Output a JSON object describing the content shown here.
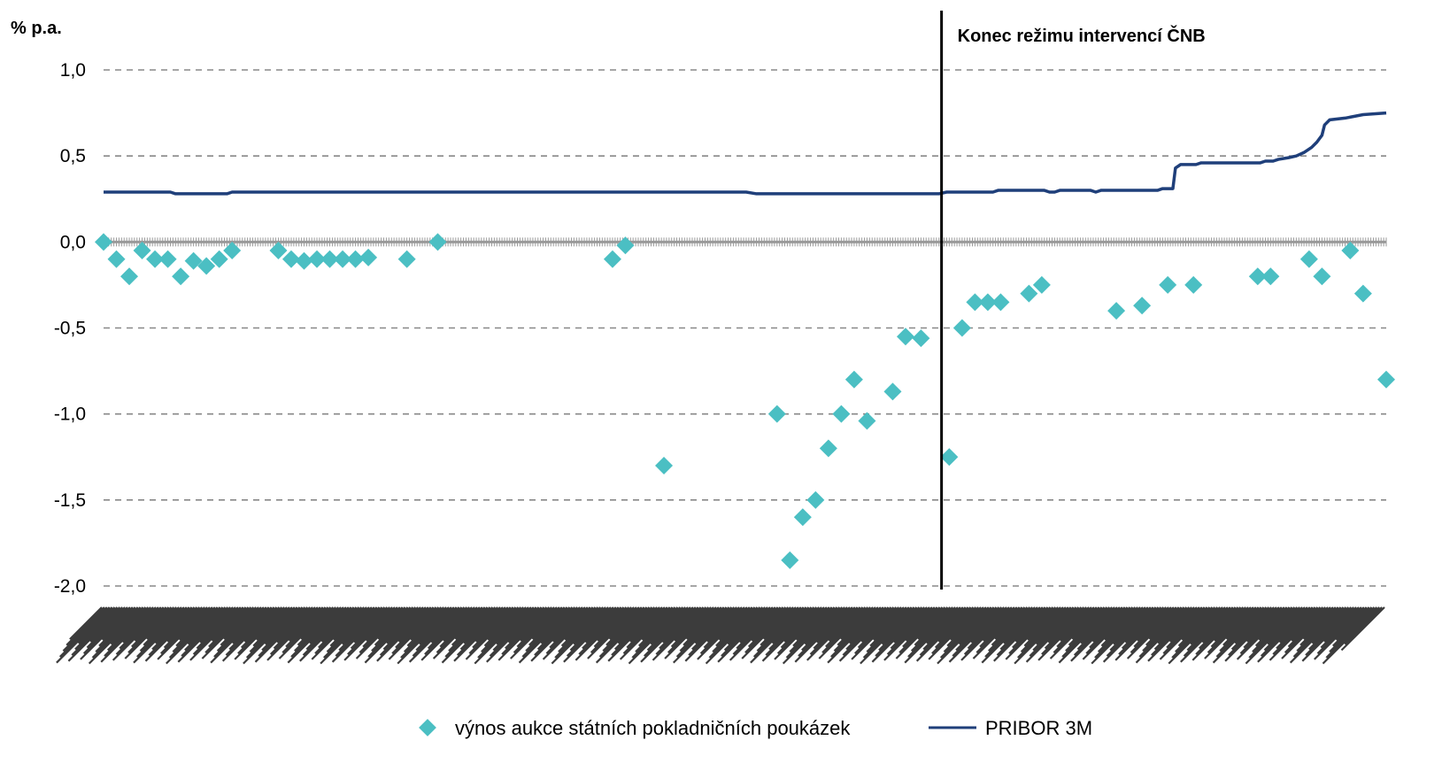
{
  "chart_data": {
    "type": "line",
    "title": "",
    "ylabel": "% p.a.",
    "xlabel": "",
    "ylim": [
      -2.0,
      1.0
    ],
    "yticks": [
      "1,0",
      "0,5",
      "0,0",
      "-0,5",
      "-1,0",
      "-1,5",
      "-2,0"
    ],
    "ytick_values": [
      1.0,
      0.5,
      0.0,
      -0.5,
      -1.0,
      -1.5,
      -2.0
    ],
    "grid": "horizontal dashed",
    "x_points": 500,
    "annotation": {
      "text": "Konec režimu intervencí ČNB",
      "x_index": 326
    },
    "legend": {
      "placement": "bottom-center",
      "items": [
        {
          "label": "výnos aukce státních pokladničních poukázek",
          "marker": "diamond",
          "color": "#4bbfc3"
        },
        {
          "label": "PRIBOR 3M",
          "marker": "line",
          "color": "#1f3f7a"
        }
      ]
    },
    "series": [
      {
        "name": "výnos aukce státních pokladničních poukázek",
        "type": "scatter",
        "color": "#4bbfc3",
        "points": [
          {
            "i": 0,
            "y": 0.0
          },
          {
            "i": 5,
            "y": -0.1
          },
          {
            "i": 10,
            "y": -0.2
          },
          {
            "i": 15,
            "y": -0.05
          },
          {
            "i": 20,
            "y": -0.1
          },
          {
            "i": 25,
            "y": -0.1
          },
          {
            "i": 30,
            "y": -0.2
          },
          {
            "i": 35,
            "y": -0.11
          },
          {
            "i": 40,
            "y": -0.14
          },
          {
            "i": 45,
            "y": -0.1
          },
          {
            "i": 50,
            "y": -0.05
          },
          {
            "i": 68,
            "y": -0.05
          },
          {
            "i": 73,
            "y": -0.1
          },
          {
            "i": 78,
            "y": -0.11
          },
          {
            "i": 83,
            "y": -0.1
          },
          {
            "i": 88,
            "y": -0.1
          },
          {
            "i": 93,
            "y": -0.1
          },
          {
            "i": 98,
            "y": -0.1
          },
          {
            "i": 103,
            "y": -0.09
          },
          {
            "i": 118,
            "y": -0.1
          },
          {
            "i": 130,
            "y": 0.0
          },
          {
            "i": 198,
            "y": -0.1
          },
          {
            "i": 203,
            "y": -0.02
          },
          {
            "i": 218,
            "y": -1.3
          },
          {
            "i": 262,
            "y": -1.0
          },
          {
            "i": 267,
            "y": -1.85
          },
          {
            "i": 272,
            "y": -1.6
          },
          {
            "i": 277,
            "y": -1.5
          },
          {
            "i": 282,
            "y": -1.2
          },
          {
            "i": 287,
            "y": -1.0
          },
          {
            "i": 292,
            "y": -0.8
          },
          {
            "i": 297,
            "y": -1.04
          },
          {
            "i": 307,
            "y": -0.87
          },
          {
            "i": 312,
            "y": -0.55
          },
          {
            "i": 318,
            "y": -0.56
          },
          {
            "i": 329,
            "y": -1.25
          },
          {
            "i": 334,
            "y": -0.5
          },
          {
            "i": 339,
            "y": -0.35
          },
          {
            "i": 344,
            "y": -0.35
          },
          {
            "i": 349,
            "y": -0.35
          },
          {
            "i": 360,
            "y": -0.3
          },
          {
            "i": 365,
            "y": -0.25
          },
          {
            "i": 394,
            "y": -0.4
          },
          {
            "i": 404,
            "y": -0.37
          },
          {
            "i": 414,
            "y": -0.25
          },
          {
            "i": 424,
            "y": -0.25
          },
          {
            "i": 449,
            "y": -0.2
          },
          {
            "i": 454,
            "y": -0.2
          },
          {
            "i": 469,
            "y": -0.1
          },
          {
            "i": 474,
            "y": -0.2
          },
          {
            "i": 485,
            "y": -0.05
          },
          {
            "i": 490,
            "y": -0.3
          },
          {
            "i": 499,
            "y": -0.8
          }
        ]
      },
      {
        "name": "PRIBOR 3M",
        "type": "line",
        "color": "#1f3f7a",
        "points": [
          {
            "i": 0,
            "y": 0.29
          },
          {
            "i": 26,
            "y": 0.29
          },
          {
            "i": 28,
            "y": 0.28
          },
          {
            "i": 48,
            "y": 0.28
          },
          {
            "i": 50,
            "y": 0.29
          },
          {
            "i": 250,
            "y": 0.29
          },
          {
            "i": 254,
            "y": 0.28
          },
          {
            "i": 258,
            "y": 0.28
          },
          {
            "i": 260,
            "y": 0.28
          },
          {
            "i": 325,
            "y": 0.28
          },
          {
            "i": 328,
            "y": 0.29
          },
          {
            "i": 346,
            "y": 0.29
          },
          {
            "i": 348,
            "y": 0.3
          },
          {
            "i": 366,
            "y": 0.3
          },
          {
            "i": 368,
            "y": 0.29
          },
          {
            "i": 370,
            "y": 0.29
          },
          {
            "i": 372,
            "y": 0.3
          },
          {
            "i": 384,
            "y": 0.3
          },
          {
            "i": 386,
            "y": 0.29
          },
          {
            "i": 388,
            "y": 0.3
          },
          {
            "i": 410,
            "y": 0.3
          },
          {
            "i": 412,
            "y": 0.31
          },
          {
            "i": 416,
            "y": 0.31
          },
          {
            "i": 417,
            "y": 0.43
          },
          {
            "i": 419,
            "y": 0.45
          },
          {
            "i": 425,
            "y": 0.45
          },
          {
            "i": 427,
            "y": 0.46
          },
          {
            "i": 450,
            "y": 0.46
          },
          {
            "i": 452,
            "y": 0.47
          },
          {
            "i": 455,
            "y": 0.47
          },
          {
            "i": 457,
            "y": 0.48
          },
          {
            "i": 461,
            "y": 0.49
          },
          {
            "i": 464,
            "y": 0.5
          },
          {
            "i": 467,
            "y": 0.52
          },
          {
            "i": 470,
            "y": 0.55
          },
          {
            "i": 472,
            "y": 0.58
          },
          {
            "i": 474,
            "y": 0.62
          },
          {
            "i": 475,
            "y": 0.68
          },
          {
            "i": 477,
            "y": 0.71
          },
          {
            "i": 483,
            "y": 0.72
          },
          {
            "i": 490,
            "y": 0.74
          },
          {
            "i": 499,
            "y": 0.75
          }
        ]
      }
    ]
  }
}
